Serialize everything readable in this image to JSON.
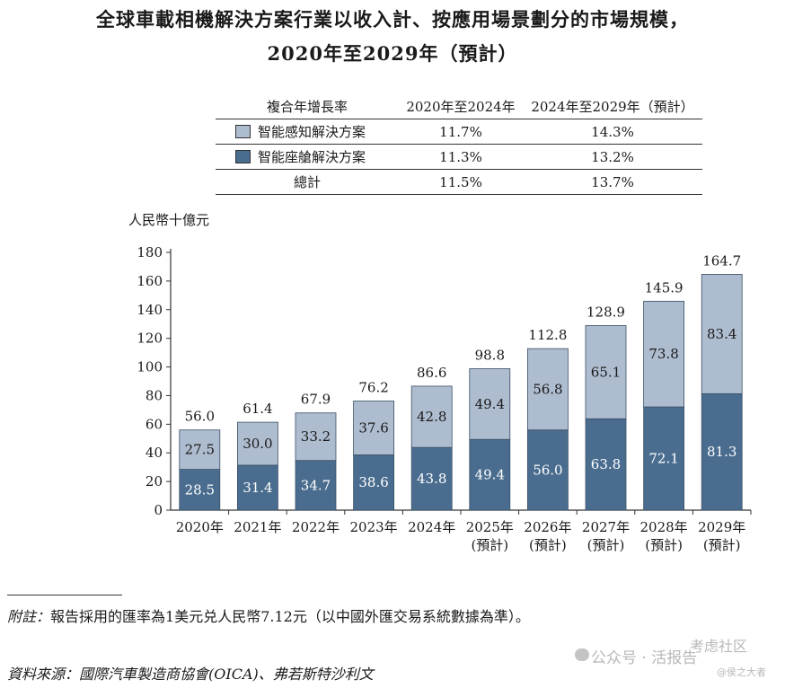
{
  "title_line1": "全球車載相機解決方案行業以收入計、按應用場景劃分的市場規模，",
  "title_line2": "2020年至2029年（預計）",
  "legend_table": {
    "headers": [
      "複合年增長率",
      "2020年至2024年",
      "2024年至2029年（預計）"
    ],
    "rows": [
      {
        "name": "智能感知解決方案",
        "cagr_2020_2024": "11.7%",
        "cagr_2024_2029": "14.3%"
      },
      {
        "name": "智能座艙解決方案",
        "cagr_2020_2024": "11.3%",
        "cagr_2024_2029": "13.2%"
      },
      {
        "name": "總計",
        "cagr_2020_2024": "11.5%",
        "cagr_2024_2029": "13.7%"
      }
    ]
  },
  "unit_label": "人民幣十億元",
  "chart_data": {
    "type": "bar",
    "stacked": true,
    "categories": [
      "2020年",
      "2021年",
      "2022年",
      "2023年",
      "2024年",
      "2025年",
      "2026年",
      "2027年",
      "2028年",
      "2029年"
    ],
    "category_sublabels": [
      "",
      "",
      "",
      "",
      "",
      "(預計)",
      "(預計)",
      "(預計)",
      "(預計)",
      "(預計)"
    ],
    "series": [
      {
        "name": "智能座艙解決方案",
        "color": "#4a6d8f",
        "label_color": "#ffffff",
        "values": [
          28.5,
          31.4,
          34.7,
          38.6,
          43.8,
          49.4,
          56.0,
          63.8,
          72.1,
          81.3
        ]
      },
      {
        "name": "智能感知解決方案",
        "color": "#aebccf",
        "label_color": "#1a1a1a",
        "values": [
          27.5,
          30.0,
          33.2,
          37.6,
          42.8,
          49.4,
          56.8,
          65.1,
          73.8,
          83.4
        ]
      }
    ],
    "totals": [
      56.0,
      61.4,
      67.9,
      76.2,
      86.6,
      98.8,
      112.8,
      128.9,
      145.9,
      164.7
    ],
    "yticks": [
      0,
      20,
      40,
      60,
      80,
      100,
      120,
      140,
      160,
      180
    ],
    "ylim": [
      0,
      180
    ],
    "ylabel": "人民幣十億元",
    "xlabel": ""
  },
  "footnote": {
    "label": "附註：",
    "text": "報告採用的匯率為1美元兑人民幣7.12元（以中國外匯交易系統數據為準）。"
  },
  "source": {
    "label": "資料來源：",
    "text": "國際汽車製造商協會(OICA)、弗若斯特沙利文"
  },
  "watermark": {
    "left": "公众号 · 活报告",
    "right": "考虑社区",
    "small": "@侯之大者"
  }
}
